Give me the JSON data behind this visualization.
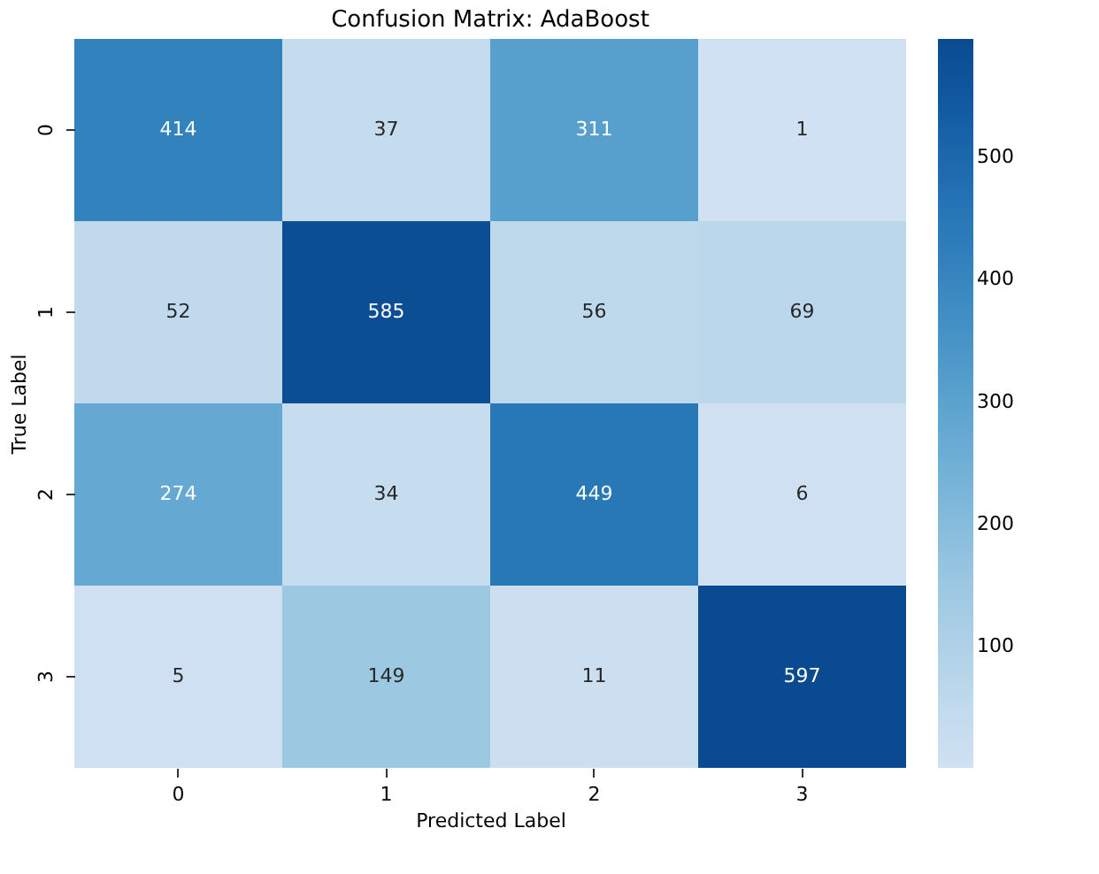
{
  "chart_data": {
    "type": "heatmap",
    "title": "Confusion Matrix: AdaBoost",
    "xlabel": "Predicted Label",
    "ylabel": "True Label",
    "categories": [
      "0",
      "1",
      "2",
      "3"
    ],
    "y_categories": [
      "0",
      "1",
      "2",
      "3"
    ],
    "cells": [
      [
        414,
        37,
        311,
        1
      ],
      [
        52,
        585,
        56,
        69
      ],
      [
        274,
        34,
        449,
        6
      ],
      [
        5,
        149,
        11,
        597
      ]
    ],
    "clim": [
      1,
      597
    ],
    "cticks": [
      100,
      200,
      300,
      400,
      500
    ],
    "data_labels": true
  }
}
